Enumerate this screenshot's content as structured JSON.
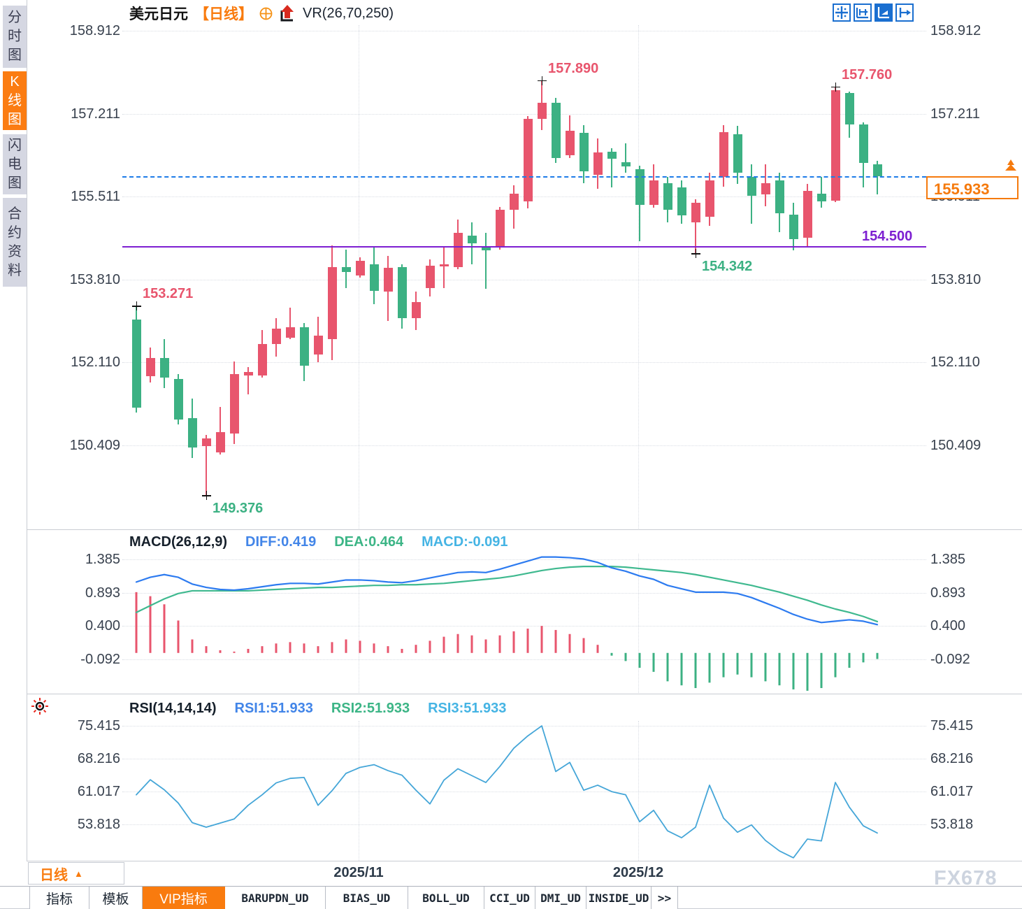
{
  "sidebar": {
    "tabs": [
      {
        "label": "分时图",
        "active": false
      },
      {
        "label": "K线图",
        "active": true
      },
      {
        "label": "闪电图",
        "active": false
      },
      {
        "label": "合约资料",
        "active": false
      }
    ]
  },
  "header": {
    "symbol": "美元日元",
    "period": "【日线】",
    "indicator_label": "VR(26,70,250)"
  },
  "toolbar": {
    "icons": [
      {
        "name": "crosshair-move-icon",
        "active": false
      },
      {
        "name": "x-axis-scale-icon",
        "active": false
      },
      {
        "name": "auto-scale-icon",
        "active": true
      },
      {
        "name": "pan-right-icon",
        "active": false
      }
    ]
  },
  "price_badge": {
    "value": "155.933"
  },
  "support_line": {
    "label": "154.500",
    "price": 154.5
  },
  "x_axis": {
    "labels": [
      "2025/11",
      "2025/12"
    ]
  },
  "period_box": {
    "label": "日线",
    "arrow": "▲"
  },
  "bottom_tabs": [
    {
      "label": "指标",
      "active": false
    },
    {
      "label": "模板",
      "active": false
    },
    {
      "label": "VIP指标",
      "active": true
    },
    {
      "label": "BARUPDN_UD",
      "active": false
    },
    {
      "label": "BIAS_UD",
      "active": false
    },
    {
      "label": "BOLL_UD",
      "active": false
    },
    {
      "label": "CCI_UD",
      "active": false
    },
    {
      "label": "DMI_UD",
      "active": false
    },
    {
      "label": "INSIDE_UD",
      "active": false
    },
    {
      "label": ">>",
      "active": false
    }
  ],
  "watermark": "FX678",
  "colors": {
    "up": "#e8556d",
    "down": "#3cb183",
    "accent_orange": "#f97b0e",
    "support_purple": "#7d1fd1",
    "last_price_blue": "#1e7ce8",
    "diff_blue": "#2d7bf0",
    "dea_green": "#3fb98f",
    "rsi_blue": "#45a6d8"
  },
  "chart_data": [
    {
      "type": "candlestick",
      "title": "美元日元 日线",
      "ylim": [
        149.0,
        159.2
      ],
      "y_ticks": [
        "158.912",
        "157.211",
        "155.511",
        "153.810",
        "152.110",
        "150.409"
      ],
      "x_gridline_labels": [
        "2025/11",
        "2025/12"
      ],
      "last_price": 155.933,
      "support": 154.5,
      "candles": [
        [
          152.99,
          153.27,
          151.08,
          151.19
        ],
        [
          151.83,
          152.42,
          151.7,
          152.2
        ],
        [
          152.2,
          152.59,
          151.59,
          151.8
        ],
        [
          151.77,
          151.87,
          150.84,
          150.94
        ],
        [
          150.97,
          151.37,
          150.15,
          150.37
        ],
        [
          150.4,
          150.62,
          149.38,
          150.55
        ],
        [
          150.27,
          151.2,
          150.22,
          150.68
        ],
        [
          150.65,
          152.13,
          150.44,
          151.87
        ],
        [
          151.84,
          152.01,
          151.46,
          151.91
        ],
        [
          151.84,
          152.77,
          151.8,
          152.49
        ],
        [
          152.49,
          153.02,
          152.23,
          152.8
        ],
        [
          152.62,
          153.24,
          152.59,
          152.83
        ],
        [
          152.83,
          152.92,
          151.73,
          152.04
        ],
        [
          152.27,
          153.05,
          152.12,
          152.66
        ],
        [
          152.59,
          154.51,
          152.16,
          154.06
        ],
        [
          154.06,
          154.43,
          153.64,
          153.97
        ],
        [
          153.9,
          154.26,
          153.85,
          154.19
        ],
        [
          154.12,
          154.49,
          153.3,
          153.58
        ],
        [
          153.57,
          154.29,
          152.96,
          154.05
        ],
        [
          154.06,
          154.12,
          152.8,
          153.02
        ],
        [
          153.02,
          153.57,
          152.78,
          153.35
        ],
        [
          153.63,
          154.23,
          153.47,
          154.1
        ],
        [
          154.08,
          154.48,
          153.63,
          154.12
        ],
        [
          154.06,
          155.04,
          154.02,
          154.77
        ],
        [
          154.71,
          154.98,
          154.12,
          154.55
        ],
        [
          154.48,
          154.77,
          153.62,
          154.41
        ],
        [
          154.5,
          155.3,
          154.43,
          155.24
        ],
        [
          155.24,
          155.74,
          154.85,
          155.57
        ],
        [
          155.41,
          157.16,
          155.27,
          157.11
        ],
        [
          157.11,
          157.89,
          156.88,
          157.44
        ],
        [
          157.44,
          157.54,
          156.2,
          156.3
        ],
        [
          156.36,
          157.18,
          156.3,
          156.86
        ],
        [
          156.82,
          156.98,
          155.79,
          156.03
        ],
        [
          155.96,
          156.7,
          155.67,
          156.42
        ],
        [
          156.43,
          156.5,
          155.7,
          156.29
        ],
        [
          156.22,
          156.6,
          156.0,
          156.13
        ],
        [
          156.07,
          156.15,
          154.6,
          155.34
        ],
        [
          155.34,
          156.17,
          155.28,
          155.84
        ],
        [
          155.79,
          155.91,
          154.98,
          155.24
        ],
        [
          155.7,
          155.85,
          154.95,
          155.12
        ],
        [
          154.99,
          155.45,
          154.34,
          155.38
        ],
        [
          155.1,
          156.0,
          154.91,
          155.85
        ],
        [
          155.91,
          156.98,
          155.71,
          156.84
        ],
        [
          156.79,
          156.96,
          155.77,
          156.0
        ],
        [
          155.91,
          156.17,
          154.95,
          155.53
        ],
        [
          155.56,
          156.17,
          155.31,
          155.79
        ],
        [
          155.84,
          156.0,
          154.78,
          155.17
        ],
        [
          155.14,
          155.38,
          154.41,
          154.64
        ],
        [
          154.67,
          155.77,
          154.49,
          155.63
        ],
        [
          155.57,
          155.91,
          155.28,
          155.41
        ],
        [
          155.43,
          157.76,
          155.4,
          157.7
        ],
        [
          157.63,
          157.67,
          156.72,
          156.99
        ],
        [
          156.99,
          157.03,
          155.7,
          156.2
        ],
        [
          156.17,
          156.24,
          155.56,
          155.93
        ]
      ],
      "annotations": [
        {
          "text": "153.271",
          "index": 0,
          "anchor": "high",
          "tone": "up"
        },
        {
          "text": "149.376",
          "index": 5,
          "anchor": "low",
          "tone": "down"
        },
        {
          "text": "157.890",
          "index": 29,
          "anchor": "high",
          "tone": "up"
        },
        {
          "text": "154.342",
          "index": 40,
          "anchor": "low",
          "tone": "down"
        },
        {
          "text": "157.760",
          "index": 50,
          "anchor": "high",
          "tone": "up"
        }
      ]
    },
    {
      "type": "bar",
      "title": "MACD(26,12,9)",
      "legend": [
        "DIFF:0.419",
        "DEA:0.464",
        "MACD:-0.091"
      ],
      "y_ticks": [
        "1.385",
        "0.893",
        "0.400",
        "-0.092"
      ],
      "diff": [
        1.05,
        1.12,
        1.16,
        1.12,
        1.02,
        0.97,
        0.94,
        0.93,
        0.95,
        0.98,
        1.01,
        1.03,
        1.03,
        1.02,
        1.05,
        1.08,
        1.08,
        1.07,
        1.05,
        1.04,
        1.07,
        1.11,
        1.15,
        1.19,
        1.2,
        1.19,
        1.24,
        1.3,
        1.36,
        1.42,
        1.42,
        1.41,
        1.39,
        1.34,
        1.26,
        1.21,
        1.14,
        1.09,
        1.0,
        0.95,
        0.9,
        0.9,
        0.9,
        0.88,
        0.82,
        0.74,
        0.66,
        0.57,
        0.5,
        0.45,
        0.47,
        0.49,
        0.47,
        0.419
      ],
      "dea": [
        0.6,
        0.7,
        0.8,
        0.88,
        0.92,
        0.92,
        0.92,
        0.92,
        0.92,
        0.93,
        0.94,
        0.95,
        0.96,
        0.97,
        0.97,
        0.98,
        0.99,
        1.0,
        1.0,
        1.01,
        1.01,
        1.02,
        1.03,
        1.05,
        1.07,
        1.09,
        1.11,
        1.14,
        1.18,
        1.22,
        1.25,
        1.27,
        1.28,
        1.28,
        1.28,
        1.27,
        1.25,
        1.23,
        1.21,
        1.19,
        1.16,
        1.12,
        1.08,
        1.04,
        1.0,
        0.95,
        0.9,
        0.84,
        0.78,
        0.71,
        0.65,
        0.6,
        0.54,
        0.464
      ],
      "hist": [
        0.9,
        0.84,
        0.72,
        0.48,
        0.2,
        0.1,
        0.04,
        0.02,
        0.06,
        0.1,
        0.14,
        0.16,
        0.14,
        0.1,
        0.16,
        0.2,
        0.18,
        0.14,
        0.1,
        0.06,
        0.12,
        0.18,
        0.24,
        0.28,
        0.26,
        0.2,
        0.26,
        0.32,
        0.36,
        0.4,
        0.34,
        0.28,
        0.22,
        0.12,
        -0.04,
        -0.12,
        -0.22,
        -0.28,
        -0.42,
        -0.48,
        -0.52,
        -0.44,
        -0.36,
        -0.32,
        -0.36,
        -0.42,
        -0.48,
        -0.54,
        -0.56,
        -0.52,
        -0.36,
        -0.22,
        -0.14,
        -0.09
      ]
    },
    {
      "type": "line",
      "title": "RSI(14,14,14)",
      "legend": [
        "RSI1:51.933",
        "RSI2:51.933",
        "RSI3:51.933"
      ],
      "y_ticks": [
        "75.415",
        "68.216",
        "61.017",
        "53.818"
      ],
      "values": [
        60.3,
        63.6,
        61.4,
        58.5,
        54.2,
        53.2,
        54.1,
        55.0,
        58.0,
        60.3,
        62.9,
        63.9,
        64.1,
        58.0,
        61.2,
        65.0,
        66.3,
        66.9,
        65.6,
        64.6,
        61.3,
        58.3,
        63.5,
        66.0,
        64.5,
        63.0,
        66.5,
        70.5,
        73.2,
        75.4,
        65.4,
        67.4,
        61.3,
        62.4,
        61.0,
        60.3,
        54.4,
        56.9,
        52.4,
        50.9,
        53.2,
        62.4,
        55.2,
        52.1,
        53.7,
        50.3,
        48.0,
        46.5,
        50.6,
        50.2,
        63.0,
        57.6,
        53.5,
        51.93
      ]
    }
  ]
}
